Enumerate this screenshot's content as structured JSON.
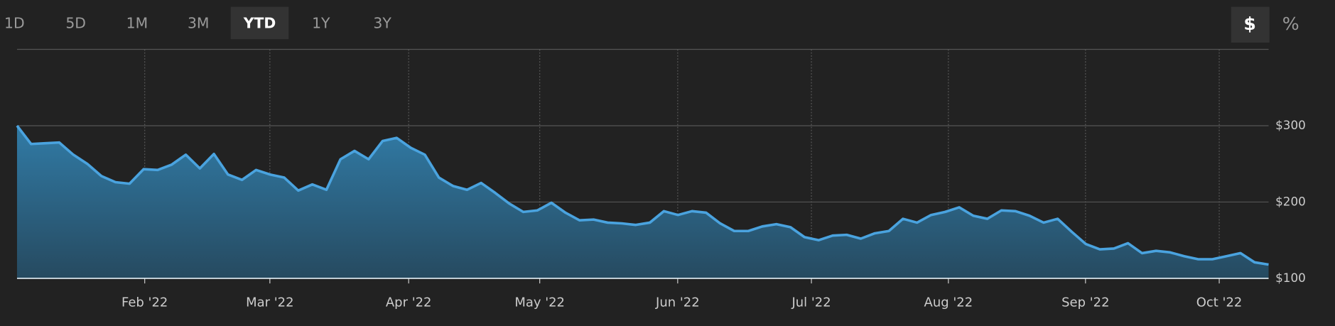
{
  "controls": {
    "ranges": [
      "1D",
      "5D",
      "1M",
      "3M",
      "YTD",
      "1Y",
      "3Y"
    ],
    "selected_range": 4,
    "units": [
      "$",
      "%"
    ],
    "selected_unit": 0
  },
  "chart_data": {
    "type": "area",
    "series": [
      {
        "color": "#4aa3df",
        "values": [
          300,
          276,
          277,
          278,
          262,
          250,
          234,
          226,
          224,
          243,
          242,
          249,
          262,
          244,
          263,
          236,
          229,
          242,
          236,
          232,
          215,
          223,
          216,
          256,
          267,
          256,
          280,
          284,
          271,
          262,
          232,
          221,
          216,
          225,
          212,
          198,
          187,
          189,
          199,
          186,
          176,
          177,
          173,
          172,
          170,
          173,
          188,
          183,
          188,
          186,
          172,
          162,
          162,
          168,
          171,
          167,
          154,
          150,
          156,
          157,
          152,
          159,
          162,
          178,
          173,
          183,
          187,
          193,
          182,
          178,
          189,
          188,
          182,
          173,
          178,
          161,
          145,
          138,
          139,
          146,
          133,
          136,
          134,
          129,
          125,
          125,
          129,
          133,
          121,
          118
        ]
      }
    ],
    "xlim": [
      0,
      89
    ],
    "xticks": [
      {
        "value": 9.08,
        "label": "Feb '22"
      },
      {
        "value": 17.98,
        "label": "Mar '22"
      },
      {
        "value": 27.85,
        "label": "Apr '22"
      },
      {
        "value": 37.17,
        "label": "May '22"
      },
      {
        "value": 46.98,
        "label": "Jun '22"
      },
      {
        "value": 56.49,
        "label": "Jul '22"
      },
      {
        "value": 66.23,
        "label": "Aug '22"
      },
      {
        "value": 75.98,
        "label": "Sep '22"
      },
      {
        "value": 85.49,
        "label": "Oct '22"
      }
    ],
    "ylim": [
      100,
      400
    ],
    "yticks": [
      {
        "value": 100,
        "label": "$100"
      },
      {
        "value": 200,
        "label": "$200"
      },
      {
        "value": 300,
        "label": "$300"
      }
    ],
    "grid": true
  }
}
